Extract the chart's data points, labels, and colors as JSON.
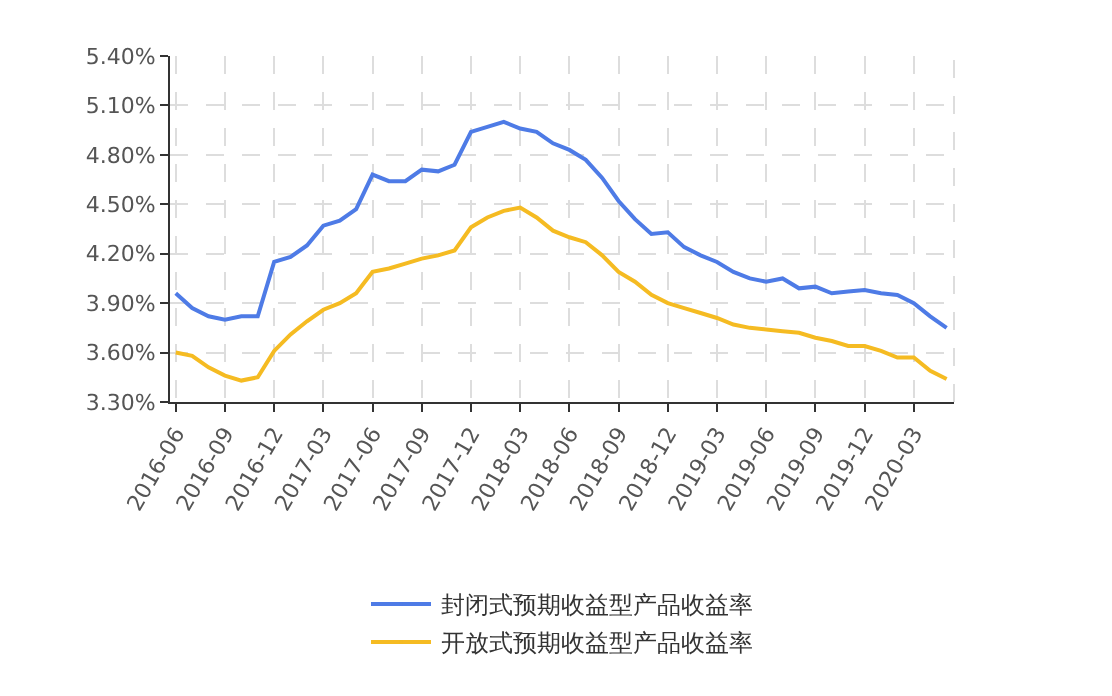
{
  "chart_data": {
    "type": "line",
    "categories": [
      "2016-06",
      null,
      null,
      "2016-09",
      null,
      null,
      "2016-12",
      null,
      null,
      "2017-03",
      null,
      null,
      "2017-06",
      null,
      null,
      "2017-09",
      null,
      null,
      "2017-12",
      null,
      null,
      "2018-03",
      null,
      null,
      "2018-06",
      null,
      null,
      "2018-09",
      null,
      null,
      "2018-12",
      null,
      null,
      "2019-03",
      null,
      null,
      "2019-06",
      null,
      null,
      "2019-09",
      null,
      null,
      "2019-12",
      null,
      null,
      "2020-03",
      null,
      null
    ],
    "series": [
      {
        "name": "封闭式预期收益型产品收益率",
        "color": "#4e7be6",
        "values": [
          3.96,
          3.87,
          3.82,
          3.8,
          3.82,
          3.82,
          4.15,
          4.18,
          4.25,
          4.37,
          4.4,
          4.47,
          4.68,
          4.64,
          4.64,
          4.71,
          4.7,
          4.74,
          4.94,
          4.97,
          5.0,
          4.96,
          4.94,
          4.87,
          4.83,
          4.77,
          4.66,
          4.52,
          4.41,
          4.32,
          4.33,
          4.24,
          4.19,
          4.15,
          4.09,
          4.05,
          4.03,
          4.05,
          3.99,
          4.0,
          3.96,
          3.97,
          3.98,
          3.96,
          3.95,
          3.9,
          3.82,
          3.75
        ]
      },
      {
        "name": "开放式预期收益型产品收益率",
        "color": "#f5bb22",
        "values": [
          3.6,
          3.58,
          3.51,
          3.46,
          3.43,
          3.45,
          3.61,
          3.71,
          3.79,
          3.86,
          3.9,
          3.96,
          4.09,
          4.11,
          4.14,
          4.17,
          4.19,
          4.22,
          4.36,
          4.42,
          4.46,
          4.48,
          4.42,
          4.34,
          4.3,
          4.27,
          4.19,
          4.09,
          4.03,
          3.95,
          3.9,
          3.87,
          3.84,
          3.81,
          3.77,
          3.75,
          3.74,
          3.73,
          3.72,
          3.69,
          3.67,
          3.64,
          3.64,
          3.61,
          3.57,
          3.57,
          3.49,
          3.44
        ]
      }
    ],
    "ylim": [
      3.3,
      5.4
    ],
    "yticks": [
      {
        "value": 3.3,
        "label": "3.30%"
      },
      {
        "value": 3.6,
        "label": "3.60%"
      },
      {
        "value": 3.9,
        "label": "3.90%"
      },
      {
        "value": 4.2,
        "label": "4.20%"
      },
      {
        "value": 4.5,
        "label": "4.50%"
      },
      {
        "value": 4.8,
        "label": "4.80%"
      },
      {
        "value": 5.1,
        "label": "5.10%"
      },
      {
        "value": 5.4,
        "label": "5.40%"
      }
    ],
    "grid": true,
    "legend": "bottom",
    "line_style": "solid"
  }
}
